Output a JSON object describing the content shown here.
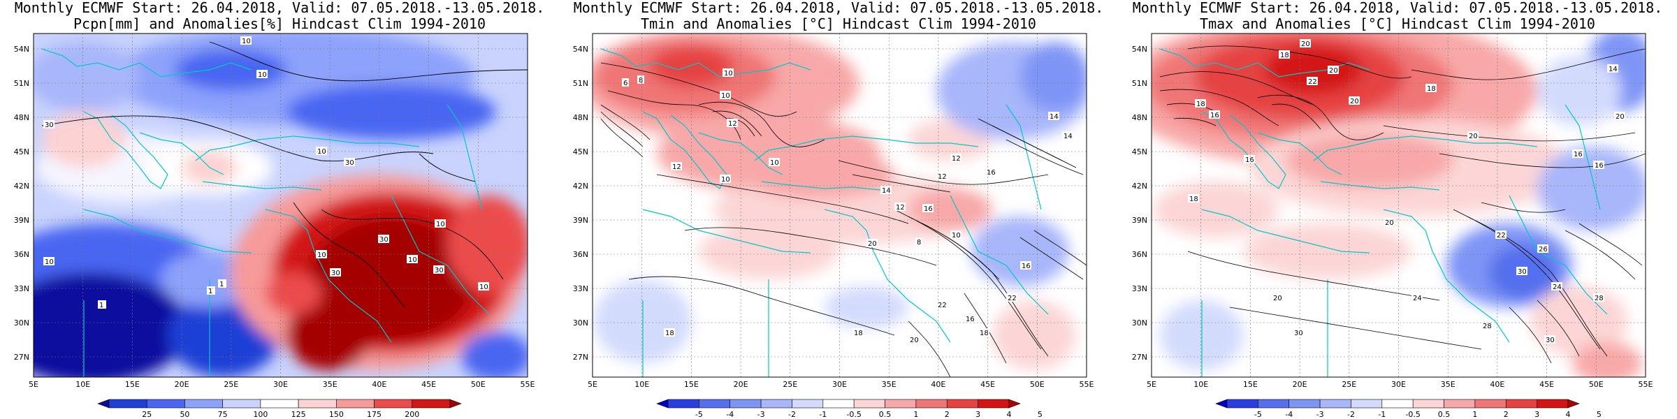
{
  "panels": [
    {
      "title_line1": "Monthly ECMWF Start: 26.04.2018, Valid: 07.05.2018.-13.05.2018.",
      "title_line2": "Pcpn[mm] and Anomalies[%] Hindcast Clim 1994-2010",
      "variable": "precipitation anomaly",
      "lat_ticks": [
        "54N",
        "51N",
        "48N",
        "45N",
        "42N",
        "39N",
        "36N",
        "33N",
        "30N",
        "27N"
      ],
      "lon_ticks": [
        "5E",
        "10E",
        "15E",
        "20E",
        "25E",
        "30E",
        "35E",
        "40E",
        "45E",
        "50E",
        "55E"
      ],
      "colorbar": {
        "labels": [
          "25",
          "50",
          "75",
          "100",
          "125",
          "150",
          "175",
          "200"
        ],
        "colors": [
          "#0c0c9e",
          "#1f3fd6",
          "#4a66f2",
          "#8da2fb",
          "#c9d3fd",
          "#ffffff",
          "#fcd2d2",
          "#f79a9a",
          "#ec4b4b",
          "#d31616",
          "#a50000"
        ]
      },
      "contour_labels": [
        "10",
        "10",
        "10",
        "30",
        "30",
        "10",
        "1",
        "1",
        "10",
        "30",
        "10",
        "30",
        "10",
        "10",
        "1",
        "30"
      ]
    },
    {
      "title_line1": "Monthly ECMWF Start: 26.04.2018, Valid: 07.05.2018.-13.05.2018.",
      "title_line2": "Tmin and Anomalies [°C] Hindcast Clim 1994-2010",
      "variable": "minimum temperature anomaly",
      "lat_ticks": [
        "54N",
        "51N",
        "48N",
        "45N",
        "42N",
        "39N",
        "36N",
        "33N",
        "30N",
        "27N"
      ],
      "lon_ticks": [
        "5E",
        "10E",
        "15E",
        "20E",
        "25E",
        "30E",
        "35E",
        "40E",
        "45E",
        "50E",
        "55E"
      ],
      "colorbar": {
        "labels": [
          "-5",
          "-4",
          "-3",
          "-2",
          "-1",
          "-0.5",
          "0.5",
          "1",
          "2",
          "3",
          "4",
          "5"
        ],
        "colors": [
          "#0000c8",
          "#2b3de0",
          "#5570ee",
          "#7f95f6",
          "#a8b6fa",
          "#d3dbfd",
          "#ffffff",
          "#fcd6d6",
          "#f8a8a8",
          "#f07676",
          "#e64242",
          "#d41414",
          "#b00000"
        ]
      },
      "contour_labels": [
        "10",
        "8",
        "6",
        "10",
        "12",
        "12",
        "10",
        "10",
        "16",
        "12",
        "14",
        "12",
        "16",
        "10",
        "8",
        "20",
        "18",
        "14",
        "16",
        "22",
        "16",
        "18",
        "20",
        "14",
        "12",
        "18",
        "22"
      ]
    },
    {
      "title_line1": "Monthly ECMWF Start: 26.04.2018, Valid: 07.05.2018.-13.05.2018.",
      "title_line2": "Tmax and Anomalies [°C] Hindcast Clim 1994-2010",
      "variable": "maximum temperature anomaly",
      "lat_ticks": [
        "54N",
        "51N",
        "48N",
        "45N",
        "42N",
        "39N",
        "36N",
        "33N",
        "30N",
        "27N"
      ],
      "lon_ticks": [
        "5E",
        "10E",
        "15E",
        "20E",
        "25E",
        "30E",
        "35E",
        "40E",
        "45E",
        "50E",
        "55E"
      ],
      "colorbar": {
        "labels": [
          "-5",
          "-4",
          "-3",
          "-2",
          "-1",
          "-0.5",
          "0.5",
          "1",
          "2",
          "3",
          "4",
          "5"
        ],
        "colors": [
          "#0000c8",
          "#2b3de0",
          "#5570ee",
          "#7f95f6",
          "#a8b6fa",
          "#d3dbfd",
          "#ffffff",
          "#fcd6d6",
          "#f8a8a8",
          "#f07676",
          "#e64242",
          "#d41414",
          "#b00000"
        ]
      },
      "contour_labels": [
        "20",
        "18",
        "20",
        "22",
        "20",
        "16",
        "18",
        "16",
        "20",
        "18",
        "14",
        "20",
        "16",
        "16",
        "18",
        "20",
        "22",
        "24",
        "26",
        "28",
        "30",
        "24",
        "20",
        "28",
        "30",
        "30"
      ]
    }
  ]
}
